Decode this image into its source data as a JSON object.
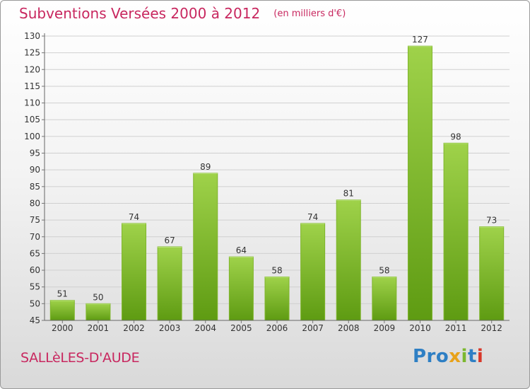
{
  "title": "Subventions Versées 2000 à 2012",
  "subtitle": "(en milliers d'€)",
  "commune": "SALLèLES-D'AUDE",
  "logo": {
    "p1": "Pro",
    "x": "x",
    "i1": "i",
    "t": "t",
    "i2": "i"
  },
  "colors": {
    "title": "#c8275f",
    "bar_light": "#9fd24a",
    "bar_dark": "#5e9b12"
  },
  "chart_data": {
    "type": "bar",
    "categories": [
      "2000",
      "2001",
      "2002",
      "2003",
      "2004",
      "2005",
      "2006",
      "2007",
      "2008",
      "2009",
      "2010",
      "2011",
      "2012"
    ],
    "values": [
      51,
      50,
      74,
      67,
      89,
      64,
      58,
      74,
      81,
      58,
      127,
      98,
      73
    ],
    "ylim": [
      45,
      130
    ],
    "yticks": [
      45,
      50,
      55,
      60,
      65,
      70,
      75,
      80,
      85,
      90,
      95,
      100,
      105,
      110,
      115,
      120,
      125,
      130
    ],
    "grid": true
  }
}
